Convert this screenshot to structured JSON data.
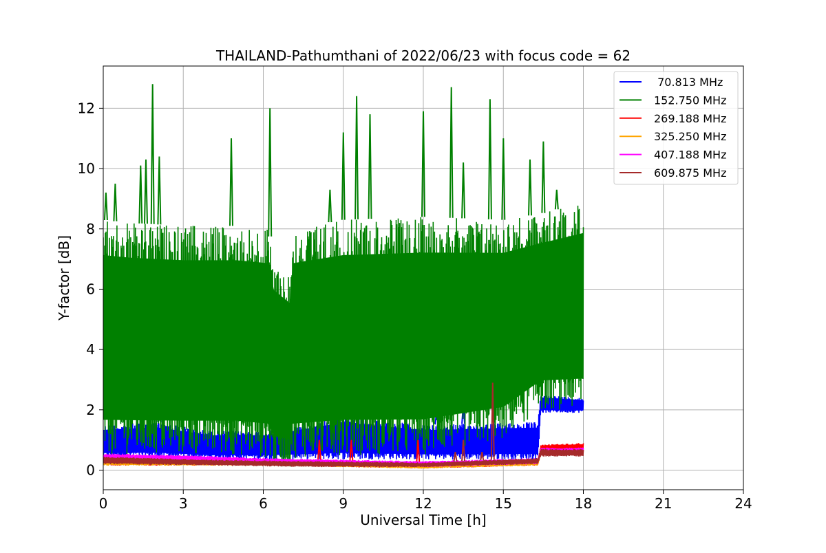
{
  "chart_data": {
    "type": "line",
    "title": "THAILAND-Pathumthani of 2022/06/23 with focus code = 62",
    "xlabel": "Universal Time [h]",
    "ylabel": "Y-factor [dB]",
    "xlim": [
      0,
      24
    ],
    "ylim": [
      -0.65,
      13.4
    ],
    "xticks": [
      0,
      3,
      6,
      9,
      12,
      15,
      18,
      21,
      24
    ],
    "yticks": [
      0,
      2,
      4,
      6,
      8,
      10,
      12
    ],
    "grid": true,
    "legend_position": "top-right",
    "x_data_range": [
      0,
      18
    ],
    "series": [
      {
        "name": " 70.813 MHz",
        "color": "#0000ff",
        "band": [
          {
            "x": 0,
            "low": 0.4,
            "high": 1.5
          },
          {
            "x": 2,
            "low": 0.4,
            "high": 1.6
          },
          {
            "x": 4,
            "low": 0.35,
            "high": 1.3
          },
          {
            "x": 6.2,
            "low": 0.35,
            "high": 1.3
          },
          {
            "x": 9,
            "low": 0.35,
            "high": 1.8
          },
          {
            "x": 12,
            "low": 0.35,
            "high": 1.5
          },
          {
            "x": 16.3,
            "low": 0.35,
            "high": 1.6
          },
          {
            "x": 16.4,
            "low": 1.9,
            "high": 2.5
          },
          {
            "x": 18,
            "low": 1.9,
            "high": 2.4
          }
        ],
        "peaks": [
          {
            "x": 2.1,
            "y": 2.5
          },
          {
            "x": 9.5,
            "y": 2.6
          },
          {
            "x": 12.5,
            "y": 2.0
          },
          {
            "x": 13.5,
            "y": 2.2
          }
        ]
      },
      {
        "name": "152.750 MHz",
        "color": "#008000",
        "band": [
          {
            "x": 0,
            "low": 0.5,
            "high": 8.3
          },
          {
            "x": 1,
            "low": 0.5,
            "high": 8.2
          },
          {
            "x": 3,
            "low": 0.5,
            "high": 8.1
          },
          {
            "x": 5,
            "low": 0.5,
            "high": 8.1
          },
          {
            "x": 6.2,
            "low": 0.4,
            "high": 8.0
          },
          {
            "x": 6.4,
            "low": 0.1,
            "high": 7.0
          },
          {
            "x": 7.0,
            "low": 0.05,
            "high": 6.5
          },
          {
            "x": 7.1,
            "low": 0.4,
            "high": 8.0
          },
          {
            "x": 9,
            "low": 0.5,
            "high": 8.3
          },
          {
            "x": 12,
            "low": 0.5,
            "high": 8.4
          },
          {
            "x": 15,
            "low": 1.0,
            "high": 8.3
          },
          {
            "x": 16.4,
            "low": 2.0,
            "high": 8.5
          },
          {
            "x": 18,
            "low": 2.0,
            "high": 8.9
          }
        ],
        "peaks": [
          {
            "x": 0.1,
            "y": 9.2
          },
          {
            "x": 0.45,
            "y": 9.5
          },
          {
            "x": 1.4,
            "y": 10.1
          },
          {
            "x": 1.6,
            "y": 10.3
          },
          {
            "x": 1.85,
            "y": 12.8
          },
          {
            "x": 2.1,
            "y": 10.4
          },
          {
            "x": 4.8,
            "y": 11.0
          },
          {
            "x": 6.25,
            "y": 12.0
          },
          {
            "x": 8.5,
            "y": 9.3
          },
          {
            "x": 9.0,
            "y": 11.2
          },
          {
            "x": 9.5,
            "y": 12.4
          },
          {
            "x": 10.0,
            "y": 11.8
          },
          {
            "x": 12.0,
            "y": 11.9
          },
          {
            "x": 13.05,
            "y": 12.7
          },
          {
            "x": 13.5,
            "y": 10.2
          },
          {
            "x": 14.5,
            "y": 12.3
          },
          {
            "x": 15.0,
            "y": 11.0
          },
          {
            "x": 16.0,
            "y": 10.3
          },
          {
            "x": 16.5,
            "y": 10.9
          },
          {
            "x": 17.0,
            "y": 9.3
          }
        ]
      },
      {
        "name": "269.188 MHz",
        "color": "#ff0000",
        "band": [
          {
            "x": 0,
            "low": 0.15,
            "high": 0.45
          },
          {
            "x": 6,
            "low": 0.15,
            "high": 0.35
          },
          {
            "x": 12,
            "low": 0.05,
            "high": 0.25
          },
          {
            "x": 16.3,
            "low": 0.15,
            "high": 0.35
          },
          {
            "x": 16.4,
            "low": 0.6,
            "high": 0.85
          },
          {
            "x": 18,
            "low": 0.65,
            "high": 0.9
          }
        ],
        "peaks": [
          {
            "x": 8.1,
            "y": 1.0
          },
          {
            "x": 9.3,
            "y": 1.0
          },
          {
            "x": 11.8,
            "y": 1.0
          }
        ]
      },
      {
        "name": "325.250 MHz",
        "color": "#ffa500",
        "band": [
          {
            "x": 0,
            "low": 0.15,
            "high": 0.35
          },
          {
            "x": 6,
            "low": 0.15,
            "high": 0.3
          },
          {
            "x": 12,
            "low": 0.05,
            "high": 0.2
          },
          {
            "x": 16.3,
            "low": 0.15,
            "high": 0.3
          },
          {
            "x": 16.4,
            "low": 0.5,
            "high": 0.7
          },
          {
            "x": 18,
            "low": 0.5,
            "high": 0.7
          }
        ],
        "peaks": []
      },
      {
        "name": "407.188 MHz",
        "color": "#ff00ff",
        "band": [
          {
            "x": 0,
            "low": 0.3,
            "high": 0.55
          },
          {
            "x": 3,
            "low": 0.3,
            "high": 0.5
          },
          {
            "x": 6,
            "low": 0.2,
            "high": 0.4
          },
          {
            "x": 12,
            "low": 0.1,
            "high": 0.3
          },
          {
            "x": 16.3,
            "low": 0.2,
            "high": 0.4
          },
          {
            "x": 16.4,
            "low": 0.5,
            "high": 0.75
          },
          {
            "x": 18,
            "low": 0.55,
            "high": 0.75
          }
        ],
        "peaks": []
      },
      {
        "name": "609.875 MHz",
        "color": "#a52a2a",
        "band": [
          {
            "x": 0,
            "low": 0.2,
            "high": 0.45
          },
          {
            "x": 4,
            "low": 0.15,
            "high": 0.35
          },
          {
            "x": 8,
            "low": 0.1,
            "high": 0.3
          },
          {
            "x": 12,
            "low": 0.1,
            "high": 0.25
          },
          {
            "x": 16.3,
            "low": 0.2,
            "high": 0.4
          },
          {
            "x": 16.4,
            "low": 0.45,
            "high": 0.7
          },
          {
            "x": 18,
            "low": 0.45,
            "high": 0.7
          }
        ],
        "peaks": [
          {
            "x": 13.2,
            "y": 0.6
          },
          {
            "x": 13.5,
            "y": 1.0
          },
          {
            "x": 14.2,
            "y": 0.6
          },
          {
            "x": 14.6,
            "y": 2.9
          }
        ]
      }
    ]
  }
}
